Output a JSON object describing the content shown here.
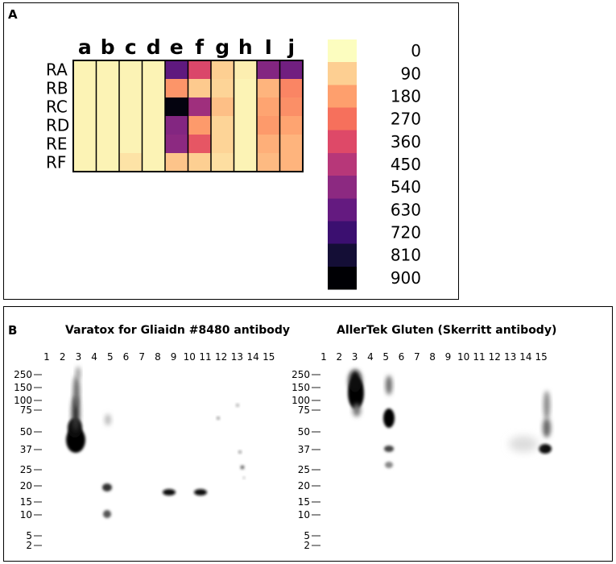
{
  "panel_a": {
    "label": "A"
  },
  "panel_b": {
    "label": "B",
    "blot_left_title": "Varatox for Gliaidn #8480 antibody",
    "blot_right_title": "AllerTek Gluten (Skerritt antibody)",
    "lanes": [
      "1",
      "2",
      "3",
      "4",
      "5",
      "6",
      "7",
      "8",
      "9",
      "10",
      "11",
      "12",
      "13",
      "14",
      "15"
    ],
    "mw_markers": [
      "250",
      "150",
      "100",
      "75",
      "50",
      "37",
      "25",
      "20",
      "15",
      "10",
      "5",
      "2"
    ]
  },
  "chart_data": {
    "type": "heatmap",
    "columns": [
      "a",
      "b",
      "c",
      "d",
      "e",
      "f",
      "g",
      "h",
      "I",
      "j"
    ],
    "rows": [
      "RA",
      "RB",
      "RC",
      "RD",
      "RE",
      "RF"
    ],
    "values": [
      [
        20,
        20,
        20,
        20,
        640,
        370,
        90,
        30,
        560,
        600
      ],
      [
        20,
        20,
        20,
        20,
        200,
        100,
        80,
        20,
        140,
        230
      ],
      [
        20,
        20,
        20,
        20,
        880,
        500,
        120,
        20,
        170,
        210
      ],
      [
        20,
        20,
        20,
        20,
        560,
        190,
        80,
        20,
        190,
        170
      ],
      [
        20,
        20,
        20,
        20,
        540,
        330,
        80,
        20,
        150,
        140
      ],
      [
        20,
        20,
        50,
        20,
        110,
        90,
        60,
        20,
        130,
        140
      ]
    ],
    "scale": {
      "ticks": [
        "0",
        "90",
        "180",
        "270",
        "360",
        "450",
        "540",
        "630",
        "720",
        "810",
        "900"
      ],
      "colors": [
        "#fcfdbf",
        "#fdcf92",
        "#fe9f6d",
        "#f6705c",
        "#de4968",
        "#b73779",
        "#8c2981",
        "#641a80",
        "#3b0f70",
        "#140e36",
        "#000004"
      ]
    }
  }
}
